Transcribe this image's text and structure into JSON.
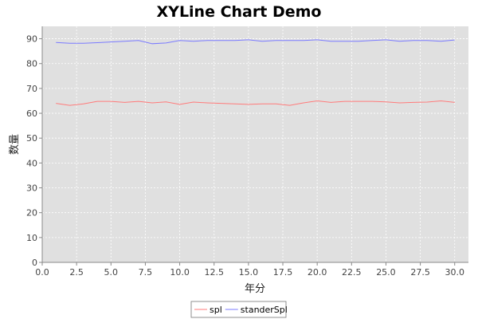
{
  "chart_data": {
    "type": "line",
    "title": "XYLine Chart Demo",
    "xlabel": "年分",
    "ylabel": "数量",
    "xlim": [
      0,
      31
    ],
    "ylim": [
      0,
      95
    ],
    "xticks": [
      "0.0",
      "2.5",
      "5.0",
      "7.5",
      "10.0",
      "12.5",
      "15.0",
      "17.5",
      "20.0",
      "22.5",
      "25.0",
      "27.5",
      "30.0"
    ],
    "yticks": [
      "0",
      "10",
      "20",
      "30",
      "40",
      "50",
      "60",
      "70",
      "80",
      "90"
    ],
    "grid": true,
    "legend_position": "bottom",
    "series": [
      {
        "name": "spl",
        "color": "#ff7b7b",
        "x": [
          1,
          2,
          3,
          4,
          5,
          6,
          7,
          8,
          9,
          10,
          11,
          12,
          13,
          14,
          15,
          16,
          17,
          18,
          19,
          20,
          21,
          22,
          23,
          24,
          25,
          26,
          27,
          28,
          29,
          30
        ],
        "y": [
          64.0,
          63.2,
          63.8,
          64.8,
          64.8,
          64.4,
          64.8,
          64.2,
          64.6,
          63.6,
          64.5,
          64.2,
          64.0,
          63.8,
          63.6,
          63.8,
          63.8,
          63.2,
          64.2,
          65.0,
          64.4,
          64.8,
          64.8,
          64.8,
          64.6,
          64.2,
          64.4,
          64.5,
          65.0,
          64.4
        ]
      },
      {
        "name": "standerSpl",
        "color": "#7b7bff",
        "x": [
          1,
          2,
          3,
          4,
          5,
          6,
          7,
          8,
          9,
          10,
          11,
          12,
          13,
          14,
          15,
          16,
          17,
          18,
          19,
          20,
          21,
          22,
          23,
          24,
          25,
          26,
          27,
          28,
          29,
          30
        ],
        "y": [
          88.5,
          88.2,
          88.2,
          88.4,
          88.7,
          89.0,
          89.3,
          88.0,
          88.3,
          89.3,
          89.0,
          89.3,
          89.3,
          89.3,
          89.6,
          89.0,
          89.3,
          89.3,
          89.3,
          89.6,
          89.0,
          89.0,
          89.0,
          89.3,
          89.6,
          89.0,
          89.3,
          89.3,
          89.0,
          89.5
        ]
      }
    ]
  }
}
